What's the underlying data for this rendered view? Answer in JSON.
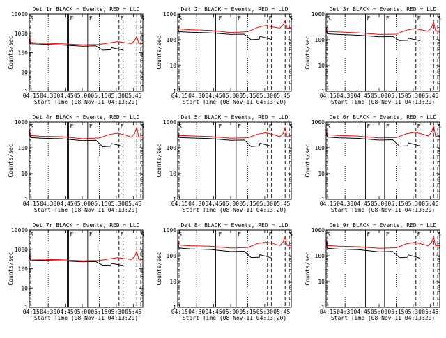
{
  "figure": {
    "x_tick_labels": [
      "04:15",
      "04:30",
      "04:45",
      "05:00",
      "05:15",
      "05:30",
      "05:45"
    ],
    "xlabel": "Start Time (08-Nov-11 04:13:20)",
    "ylabel": "Counts/sec",
    "colors": {
      "events": "#000000",
      "lld": "#ff0000",
      "axes": "#000000"
    },
    "markers": {
      "dotted_x": [
        4.5,
        5.25
      ],
      "solid_x": [
        4.78,
        4.8,
        5.08
      ],
      "dashed_x": [
        5.54,
        5.6,
        5.8,
        5.86
      ],
      "letters": [
        {
          "text": "F",
          "x": 4.8
        },
        {
          "text": "F",
          "x": 5.08
        },
        {
          "text": "E",
          "x": 5.54
        }
      ]
    }
  },
  "chart_data": [
    {
      "type": "line",
      "title": "Det 1r BLACK = Events, RED = LLD",
      "ylim": [
        1,
        10000
      ],
      "yscale": "log",
      "xlim": [
        4.222,
        5.89
      ],
      "y_tick_labels": [
        "1",
        "10",
        "100",
        "1000",
        "10000"
      ],
      "lld": [
        [
          4.22,
          600
        ],
        [
          4.24,
          340
        ],
        [
          4.4,
          310
        ],
        [
          4.7,
          290
        ],
        [
          5.0,
          255
        ],
        [
          5.25,
          265
        ],
        [
          5.4,
          320
        ],
        [
          5.52,
          375
        ],
        [
          5.62,
          330
        ],
        [
          5.72,
          300
        ],
        [
          5.77,
          420
        ],
        [
          5.8,
          700
        ],
        [
          5.83,
          300
        ],
        [
          5.89,
          300
        ]
      ],
      "events": [
        [
          4.22,
          450
        ],
        [
          4.24,
          290
        ],
        [
          4.4,
          275
        ],
        [
          4.7,
          250
        ],
        [
          5.0,
          215
        ],
        [
          5.2,
          225
        ],
        [
          5.3,
          135
        ],
        [
          5.42,
          140
        ],
        [
          5.43,
          180
        ],
        [
          5.52,
          155
        ],
        [
          5.6,
          135
        ]
      ],
      "corner_labels": [
        {
          "text": "S",
          "x": 4.225
        },
        {
          "text": "S",
          "x": 5.85
        }
      ]
    },
    {
      "type": "line",
      "title": "Det 2r BLACK = Events, RED = LLD",
      "ylim": [
        1,
        1000
      ],
      "yscale": "log",
      "xlim": [
        4.222,
        5.89
      ],
      "y_tick_labels": [
        "1",
        "10",
        "100",
        "1000"
      ],
      "lld": [
        [
          4.22,
          400
        ],
        [
          4.24,
          260
        ],
        [
          4.4,
          245
        ],
        [
          4.7,
          230
        ],
        [
          5.0,
          190
        ],
        [
          5.25,
          205
        ],
        [
          5.4,
          300
        ],
        [
          5.52,
          355
        ],
        [
          5.62,
          310
        ],
        [
          5.72,
          280
        ],
        [
          5.77,
          380
        ],
        [
          5.8,
          560
        ],
        [
          5.83,
          280
        ],
        [
          5.89,
          280
        ]
      ],
      "events": [
        [
          4.22,
          320
        ],
        [
          4.24,
          205
        ],
        [
          4.4,
          195
        ],
        [
          4.7,
          185
        ],
        [
          5.0,
          160
        ],
        [
          5.2,
          165
        ],
        [
          5.3,
          100
        ],
        [
          5.42,
          105
        ],
        [
          5.43,
          135
        ],
        [
          5.52,
          118
        ],
        [
          5.6,
          102
        ]
      ],
      "corner_labels": [
        {
          "text": "S",
          "x": 4.225
        },
        {
          "text": "S",
          "x": 5.85
        }
      ]
    },
    {
      "type": "line",
      "title": "Det 3r BLACK = Events, RED = LLD",
      "ylim": [
        1,
        1000
      ],
      "yscale": "log",
      "xlim": [
        4.222,
        5.89
      ],
      "y_tick_labels": [
        "1",
        "10",
        "100",
        "1000"
      ],
      "lld": [
        [
          4.22,
          330
        ],
        [
          4.24,
          210
        ],
        [
          4.4,
          200
        ],
        [
          4.7,
          185
        ],
        [
          5.0,
          160
        ],
        [
          5.25,
          165
        ],
        [
          5.4,
          235
        ],
        [
          5.52,
          270
        ],
        [
          5.62,
          240
        ],
        [
          5.72,
          215
        ],
        [
          5.77,
          300
        ],
        [
          5.8,
          480
        ],
        [
          5.83,
          220
        ],
        [
          5.89,
          220
        ]
      ],
      "events": [
        [
          4.22,
          260
        ],
        [
          4.24,
          170
        ],
        [
          4.4,
          160
        ],
        [
          4.7,
          150
        ],
        [
          5.0,
          130
        ],
        [
          5.2,
          135
        ],
        [
          5.3,
          92
        ],
        [
          5.42,
          95
        ],
        [
          5.43,
          115
        ],
        [
          5.52,
          102
        ],
        [
          5.6,
          90
        ]
      ],
      "corner_labels": [
        {
          "text": "S",
          "x": 4.225
        },
        {
          "text": "S",
          "x": 5.85
        }
      ]
    },
    {
      "type": "line",
      "title": "Det 4r BLACK = Events, RED = LLD",
      "ylim": [
        1,
        1000
      ],
      "yscale": "log",
      "xlim": [
        4.222,
        5.89
      ],
      "y_tick_labels": [
        "1",
        "10",
        "100",
        "1000"
      ],
      "lld": [
        [
          4.22,
          600
        ],
        [
          4.24,
          300
        ],
        [
          4.4,
          280
        ],
        [
          4.7,
          270
        ],
        [
          5.0,
          225
        ],
        [
          5.25,
          240
        ],
        [
          5.4,
          330
        ],
        [
          5.52,
          370
        ],
        [
          5.62,
          320
        ],
        [
          5.72,
          260
        ],
        [
          5.77,
          360
        ],
        [
          5.8,
          620
        ],
        [
          5.83,
          260
        ],
        [
          5.89,
          260
        ]
      ],
      "events": [
        [
          4.22,
          480
        ],
        [
          4.24,
          250
        ],
        [
          4.4,
          235
        ],
        [
          4.7,
          225
        ],
        [
          5.0,
          190
        ],
        [
          5.2,
          195
        ],
        [
          5.3,
          110
        ],
        [
          5.42,
          115
        ],
        [
          5.43,
          145
        ],
        [
          5.52,
          128
        ],
        [
          5.6,
          112
        ]
      ],
      "corner_labels": [
        {
          "text": "S",
          "x": 4.225
        },
        {
          "text": "S",
          "x": 5.85
        }
      ]
    },
    {
      "type": "line",
      "title": "Det 5r BLACK = Events, RED = LLD",
      "ylim": [
        1,
        1000
      ],
      "yscale": "log",
      "xlim": [
        4.222,
        5.89
      ],
      "y_tick_labels": [
        "1",
        "10",
        "100",
        "1000"
      ],
      "lld": [
        [
          4.22,
          520
        ],
        [
          4.24,
          300
        ],
        [
          4.4,
          290
        ],
        [
          4.7,
          275
        ],
        [
          5.0,
          235
        ],
        [
          5.25,
          245
        ],
        [
          5.4,
          340
        ],
        [
          5.52,
          380
        ],
        [
          5.62,
          330
        ],
        [
          5.72,
          270
        ],
        [
          5.77,
          360
        ],
        [
          5.8,
          600
        ],
        [
          5.83,
          270
        ],
        [
          5.89,
          270
        ]
      ],
      "events": [
        [
          4.22,
          420
        ],
        [
          4.24,
          250
        ],
        [
          4.4,
          240
        ],
        [
          4.7,
          228
        ],
        [
          5.0,
          195
        ],
        [
          5.2,
          200
        ],
        [
          5.3,
          112
        ],
        [
          5.42,
          118
        ],
        [
          5.43,
          150
        ],
        [
          5.52,
          130
        ],
        [
          5.6,
          115
        ]
      ],
      "corner_labels": [
        {
          "text": "S",
          "x": 4.225
        },
        {
          "text": "S",
          "x": 5.85
        }
      ]
    },
    {
      "type": "line",
      "title": "Det 6r BLACK = Events, RED = LLD",
      "ylim": [
        1,
        1000
      ],
      "yscale": "log",
      "xlim": [
        4.222,
        5.89
      ],
      "y_tick_labels": [
        "1",
        "10",
        "100",
        "1000"
      ],
      "lld": [
        [
          4.22,
          620
        ],
        [
          4.24,
          320
        ],
        [
          4.4,
          300
        ],
        [
          4.7,
          285
        ],
        [
          5.0,
          240
        ],
        [
          5.25,
          250
        ],
        [
          5.4,
          350
        ],
        [
          5.52,
          400
        ],
        [
          5.62,
          350
        ],
        [
          5.72,
          290
        ],
        [
          5.77,
          400
        ],
        [
          5.8,
          700
        ],
        [
          5.83,
          280
        ],
        [
          5.89,
          280
        ]
      ],
      "events": [
        [
          4.22,
          500
        ],
        [
          4.24,
          260
        ],
        [
          4.4,
          245
        ],
        [
          4.7,
          232
        ],
        [
          5.0,
          198
        ],
        [
          5.2,
          205
        ],
        [
          5.3,
          115
        ],
        [
          5.42,
          120
        ],
        [
          5.43,
          155
        ],
        [
          5.52,
          135
        ],
        [
          5.6,
          118
        ]
      ],
      "corner_labels": [
        {
          "text": "S",
          "x": 4.225
        },
        {
          "text": "S",
          "x": 5.85
        }
      ]
    },
    {
      "type": "line",
      "title": "Det 7r BLACK = Events, RED = LLD",
      "ylim": [
        1,
        10000
      ],
      "yscale": "log",
      "xlim": [
        4.222,
        5.89
      ],
      "y_tick_labels": [
        "1",
        "10",
        "100",
        "1000",
        "10000"
      ],
      "lld": [
        [
          4.22,
          700
        ],
        [
          4.24,
          320
        ],
        [
          4.4,
          305
        ],
        [
          4.7,
          290
        ],
        [
          5.0,
          255
        ],
        [
          5.25,
          265
        ],
        [
          5.4,
          320
        ],
        [
          5.52,
          370
        ],
        [
          5.62,
          330
        ],
        [
          5.72,
          300
        ],
        [
          5.77,
          420
        ],
        [
          5.8,
          800
        ],
        [
          5.83,
          300
        ],
        [
          5.89,
          300
        ]
      ],
      "events": [
        [
          4.22,
          520
        ],
        [
          4.24,
          280
        ],
        [
          4.4,
          270
        ],
        [
          4.7,
          255
        ],
        [
          5.0,
          225
        ],
        [
          5.2,
          232
        ],
        [
          5.3,
          150
        ],
        [
          5.42,
          155
        ],
        [
          5.43,
          185
        ],
        [
          5.52,
          165
        ],
        [
          5.6,
          145
        ]
      ],
      "corner_labels": [
        {
          "text": "S",
          "x": 4.225
        },
        {
          "text": "S",
          "x": 5.85
        }
      ]
    },
    {
      "type": "line",
      "title": "Det 8r BLACK = Events, RED = LLD",
      "ylim": [
        1,
        1000
      ],
      "yscale": "log",
      "xlim": [
        4.222,
        5.89
      ],
      "y_tick_labels": [
        "1",
        "10",
        "100",
        "1000"
      ],
      "lld": [
        [
          4.22,
          560
        ],
        [
          4.24,
          260
        ],
        [
          4.4,
          245
        ],
        [
          4.7,
          235
        ],
        [
          5.0,
          200
        ],
        [
          5.25,
          210
        ],
        [
          5.4,
          300
        ],
        [
          5.52,
          340
        ],
        [
          5.62,
          300
        ],
        [
          5.72,
          250
        ],
        [
          5.77,
          340
        ],
        [
          5.8,
          560
        ],
        [
          5.83,
          250
        ],
        [
          5.89,
          250
        ]
      ],
      "events": [
        [
          4.22,
          400
        ],
        [
          4.24,
          200
        ],
        [
          4.4,
          185
        ],
        [
          4.7,
          175
        ],
        [
          5.0,
          145
        ],
        [
          5.2,
          150
        ],
        [
          5.3,
          85
        ],
        [
          5.42,
          88
        ],
        [
          5.43,
          110
        ],
        [
          5.52,
          95
        ],
        [
          5.6,
          82
        ]
      ],
      "corner_labels": [
        {
          "text": "S",
          "x": 4.225
        },
        {
          "text": "S",
          "x": 5.85
        }
      ]
    },
    {
      "type": "line",
      "title": "Det 9r BLACK = Events, RED = LLD",
      "ylim": [
        1,
        1000
      ],
      "yscale": "log",
      "xlim": [
        4.222,
        5.89
      ],
      "y_tick_labels": [
        "1",
        "10",
        "100",
        "1000"
      ],
      "lld": [
        [
          4.22,
          540
        ],
        [
          4.24,
          250
        ],
        [
          4.4,
          235
        ],
        [
          4.7,
          225
        ],
        [
          5.0,
          195
        ],
        [
          5.25,
          205
        ],
        [
          5.4,
          290
        ],
        [
          5.52,
          330
        ],
        [
          5.62,
          290
        ],
        [
          5.72,
          245
        ],
        [
          5.77,
          330
        ],
        [
          5.8,
          540
        ],
        [
          5.83,
          245
        ],
        [
          5.89,
          245
        ]
      ],
      "events": [
        [
          4.22,
          380
        ],
        [
          4.24,
          195
        ],
        [
          4.4,
          182
        ],
        [
          4.7,
          172
        ],
        [
          5.0,
          142
        ],
        [
          5.2,
          148
        ],
        [
          5.3,
          84
        ],
        [
          5.42,
          87
        ],
        [
          5.43,
          108
        ],
        [
          5.52,
          94
        ],
        [
          5.6,
          80
        ]
      ],
      "corner_labels": [
        {
          "text": "S",
          "x": 4.225
        },
        {
          "text": "S",
          "x": 5.85
        }
      ]
    }
  ]
}
